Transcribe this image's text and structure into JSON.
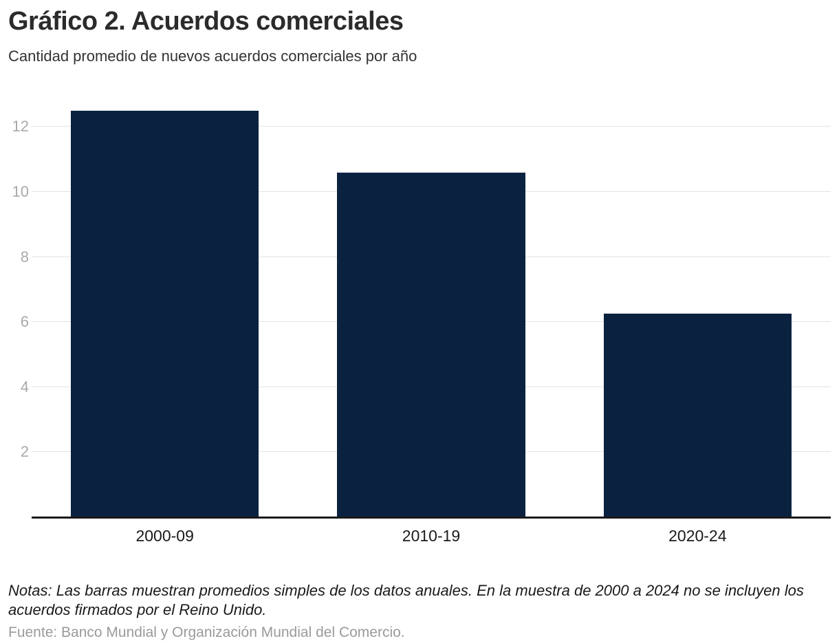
{
  "header": {
    "title": "Gráfico 2. Acuerdos comerciales",
    "subtitle": "Cantidad promedio de nuevos acuerdos comerciales por año"
  },
  "footer": {
    "notes": "Notas: Las barras muestran promedios simples de los datos anuales. En la muestra de 2000 a 2024 no se incluyen los acuerdos firmados por el Reino Unido.",
    "source": "Fuente: Banco Mundial y Organización Mundial del Comercio."
  },
  "chart_data": {
    "type": "bar",
    "title": "Gráfico 2. Acuerdos comerciales",
    "subtitle": "Cantidad promedio de nuevos acuerdos comerciales por año",
    "categories": [
      "2000-09",
      "2010-19",
      "2020-24"
    ],
    "values": [
      12.5,
      10.6,
      6.25
    ],
    "yticks": [
      2,
      4,
      6,
      8,
      10,
      12
    ],
    "ylim": [
      0,
      13
    ],
    "xlabel": "",
    "ylabel": "",
    "grid": true,
    "legend": "none",
    "bar_color": "#0a2240",
    "gridline_color": "#e3e3e3",
    "axis_line_color": "#1a1a1a",
    "tick_label_color": "#a9a9a9"
  }
}
